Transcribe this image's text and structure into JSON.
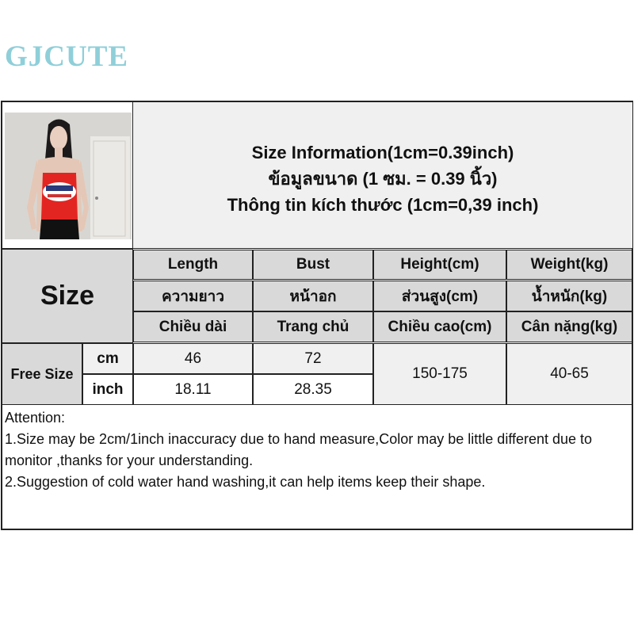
{
  "brand": {
    "logo": "GJCUTE",
    "color": "#8fcfd9"
  },
  "header": {
    "lines": [
      "Size Information(1cm=0.39inch)",
      "ข้อมูลขนาด (1 ซม. = 0.39 นิ้ว)",
      "Thông tin kích thước (1cm=0,39 inch)"
    ]
  },
  "table": {
    "size_label": "Size",
    "columns": [
      {
        "en": "Length",
        "th": "ความยาว",
        "vi": "Chiều dài"
      },
      {
        "en": "Bust",
        "th": "หน้าอก",
        "vi": "Trang chủ"
      },
      {
        "en": "Height(cm)",
        "th": "ส่วนสูง(cm)",
        "vi": "Chiều cao(cm)"
      },
      {
        "en": "Weight(kg)",
        "th": "น้ำหนัก(kg)",
        "vi": "Cân nặng(kg)"
      }
    ],
    "row_label": "Free Size",
    "units": [
      "cm",
      "inch"
    ],
    "cm_values": [
      "46",
      "72"
    ],
    "inch_values": [
      "18.11",
      "28.35"
    ],
    "height": "150-175",
    "weight": "40-65"
  },
  "attention": {
    "title": "Attention:",
    "items": [
      "1.Size may be 2cm/1inch inaccuracy due to hand measure,Color may be little different due to monitor ,thanks for your understanding.",
      "2.Suggestion of cold water hand washing,it can help items keep their shape."
    ]
  }
}
